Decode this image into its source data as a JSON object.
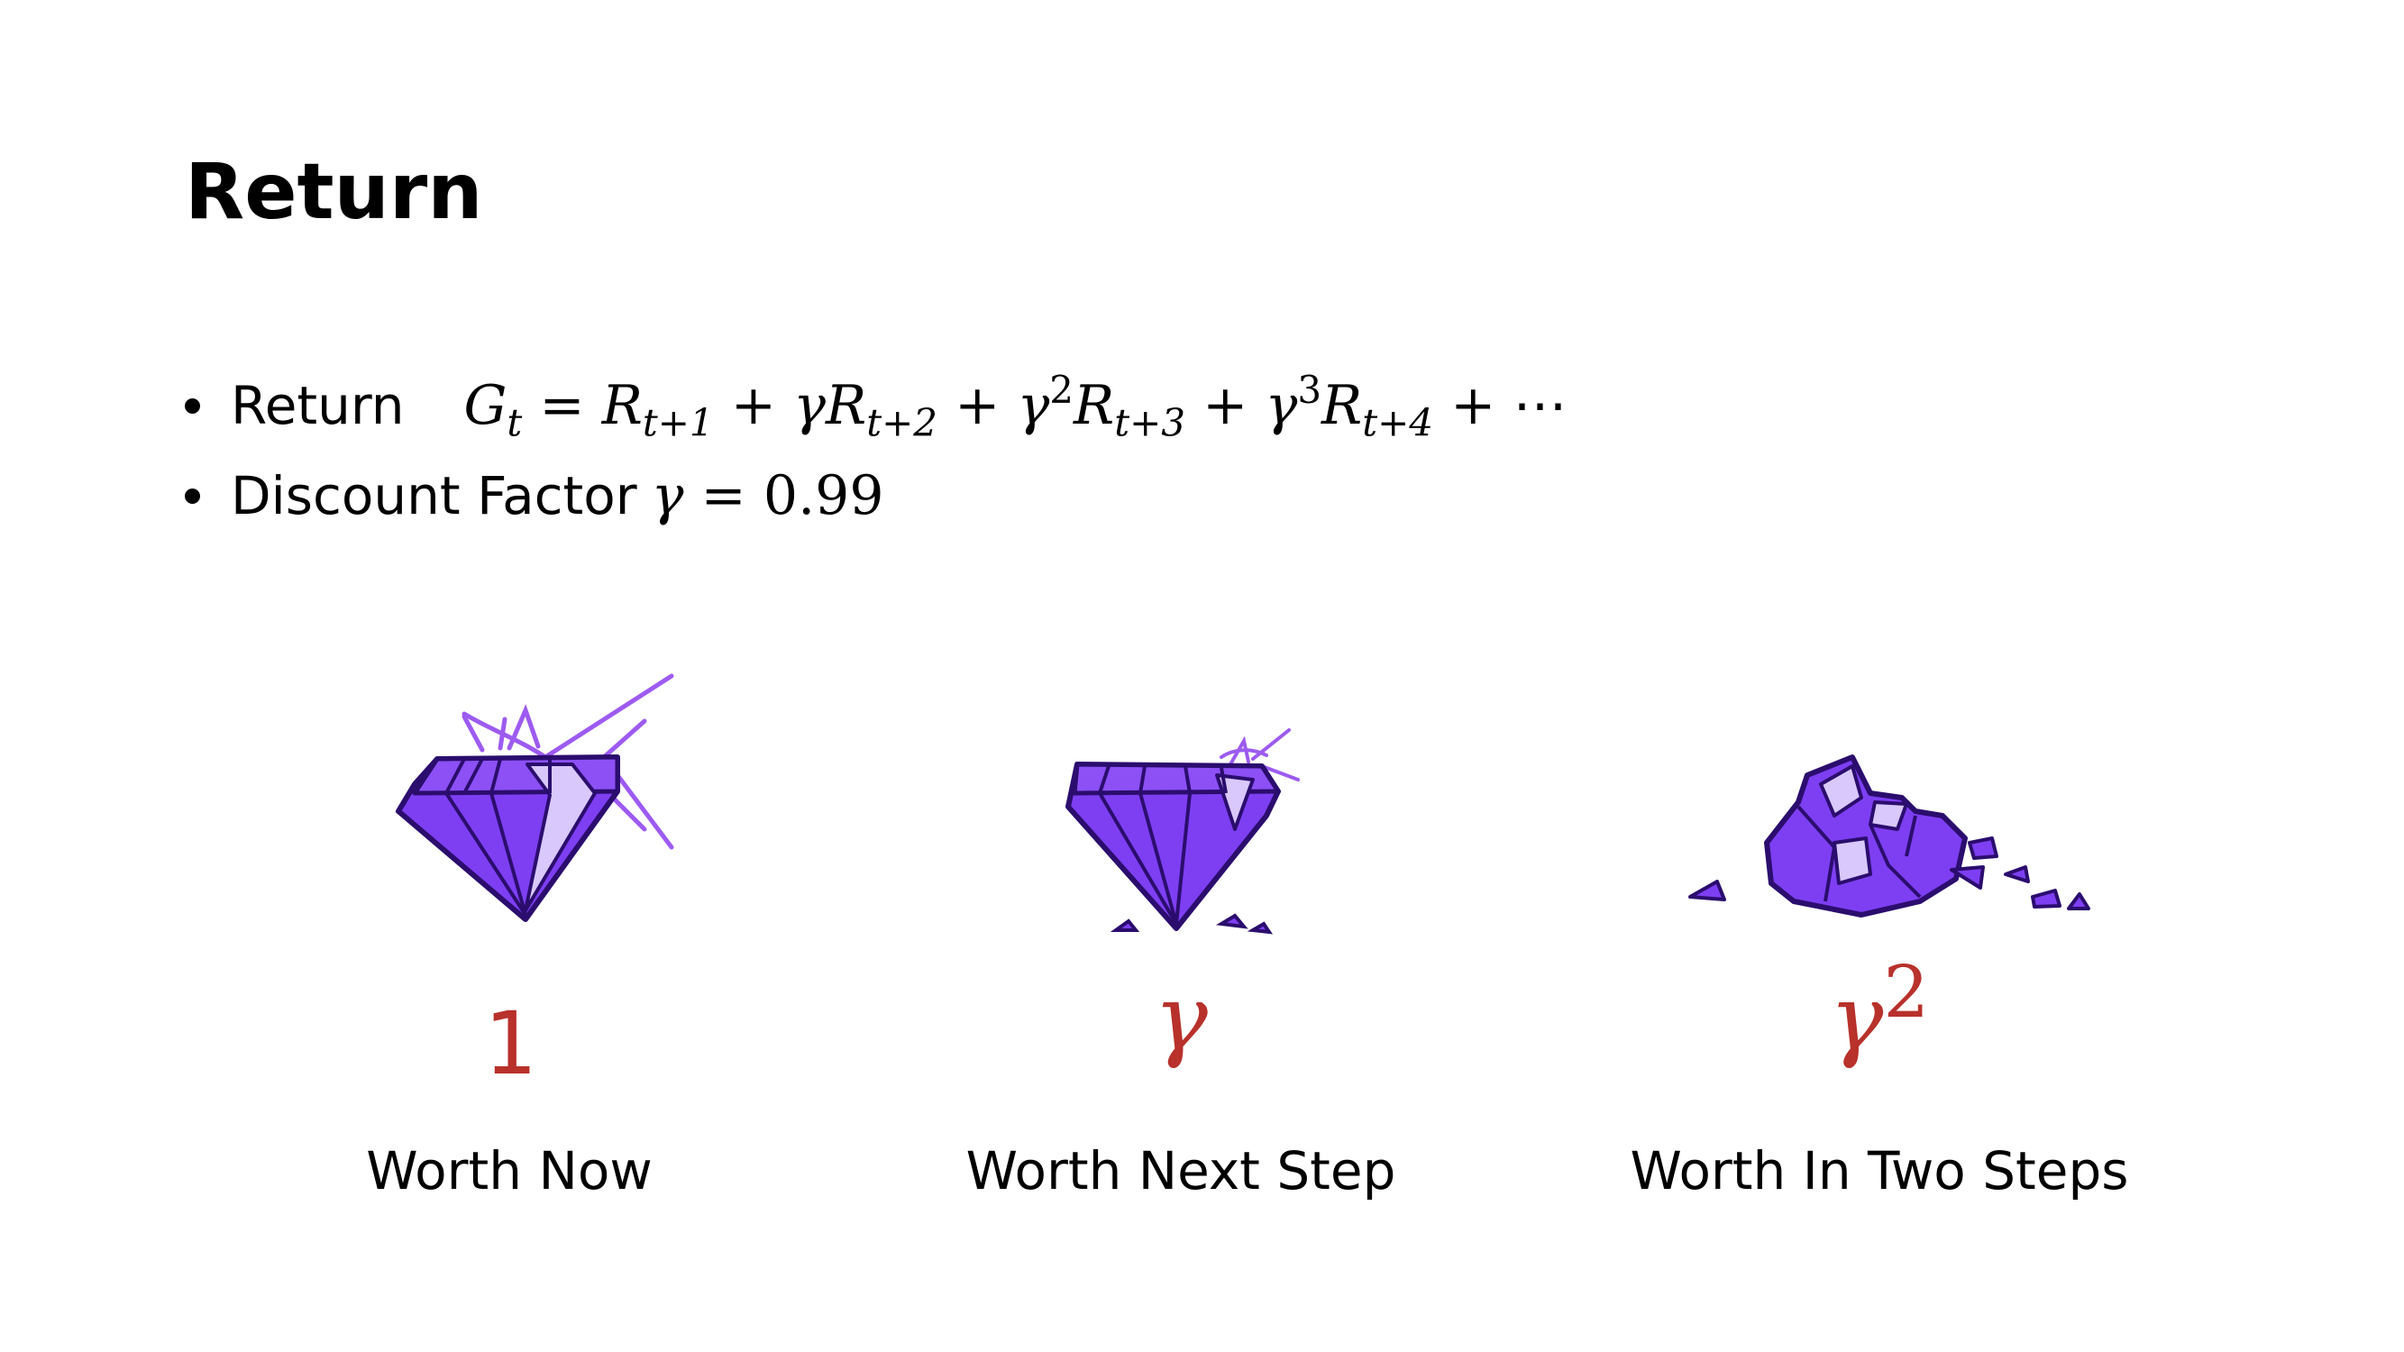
{
  "slide": {
    "title": "Return"
  },
  "bullets": [
    {
      "label": "Return",
      "formula": {
        "G": "G",
        "t": "t",
        "eq": "=",
        "R": "R",
        "gamma": "γ",
        "plus": "+",
        "sub1": "t+1",
        "sub2": "t+2",
        "sub3": "t+3",
        "sub4": "t+4",
        "exp2": "2",
        "exp3": "3",
        "dots": "⋯"
      }
    },
    {
      "label": "Discount Factor",
      "formula": {
        "gamma": "γ",
        "eq": "=",
        "value": "0.99"
      }
    }
  ],
  "items": [
    {
      "factor": "1",
      "caption": "Worth Now",
      "gem_icon": "sparkling-gem-icon"
    },
    {
      "factor": "γ",
      "caption": "Worth Next Step",
      "gem_icon": "chipped-gem-icon"
    },
    {
      "factor_base": "γ",
      "factor_exp": "2",
      "caption": "Worth In Two Steps",
      "gem_icon": "shattered-gem-icon"
    }
  ],
  "colors": {
    "factor": "#b8312b",
    "gem": "#7e3ff2",
    "gem_outline": "#2b0d6e",
    "gem_light": "#d9c8fb",
    "sparkle": "#9d5bf0"
  }
}
